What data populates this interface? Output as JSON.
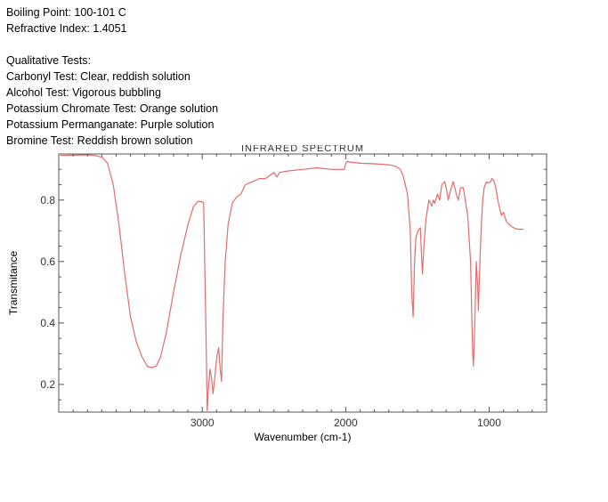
{
  "notes": {
    "boiling_point": "Boiling Point: 100-101 C",
    "refractive_index": "Refractive Index: 1.4051",
    "qualitative_heading": "Qualitative Tests:",
    "carbonyl": "Carbonyl Test: Clear, reddish solution",
    "alcohol": "Alcohol Test: Vigorous bubbling",
    "chromate": "Potassium Chromate Test: Orange solution",
    "permanganate": "Potassium Permanganate: Purple solution",
    "bromine": "Bromine Test: Reddish brown solution"
  },
  "chart_data": {
    "type": "line",
    "title": "INFRARED SPECTRUM",
    "xlabel": "Wavenumber (cm-1)",
    "ylabel": "Transmitance",
    "xlim": [
      4000,
      600
    ],
    "ylim": [
      0.11,
      0.95
    ],
    "x_reversed": true,
    "x_ticks": [
      3000,
      2000,
      1000
    ],
    "y_ticks": [
      0.2,
      0.4,
      0.6,
      0.8
    ],
    "line_color": "#e86a6a",
    "grid": false,
    "series": [
      {
        "name": "",
        "points": [
          [
            3990,
            0.945
          ],
          [
            3800,
            0.947
          ],
          [
            3750,
            0.945
          ],
          [
            3700,
            0.94
          ],
          [
            3660,
            0.92
          ],
          [
            3620,
            0.85
          ],
          [
            3580,
            0.72
          ],
          [
            3540,
            0.56
          ],
          [
            3500,
            0.42
          ],
          [
            3460,
            0.34
          ],
          [
            3420,
            0.29
          ],
          [
            3380,
            0.258
          ],
          [
            3350,
            0.255
          ],
          [
            3320,
            0.26
          ],
          [
            3290,
            0.29
          ],
          [
            3250,
            0.37
          ],
          [
            3200,
            0.5
          ],
          [
            3150,
            0.62
          ],
          [
            3100,
            0.72
          ],
          [
            3060,
            0.78
          ],
          [
            3030,
            0.795
          ],
          [
            3005,
            0.795
          ],
          [
            2990,
            0.79
          ],
          [
            2975,
            0.4
          ],
          [
            2965,
            0.115
          ],
          [
            2955,
            0.2
          ],
          [
            2945,
            0.25
          ],
          [
            2935,
            0.22
          ],
          [
            2925,
            0.17
          ],
          [
            2915,
            0.21
          ],
          [
            2905,
            0.26
          ],
          [
            2895,
            0.3
          ],
          [
            2885,
            0.32
          ],
          [
            2875,
            0.25
          ],
          [
            2865,
            0.21
          ],
          [
            2855,
            0.42
          ],
          [
            2840,
            0.6
          ],
          [
            2820,
            0.72
          ],
          [
            2790,
            0.79
          ],
          [
            2760,
            0.81
          ],
          [
            2730,
            0.82
          ],
          [
            2700,
            0.85
          ],
          [
            2650,
            0.86
          ],
          [
            2600,
            0.87
          ],
          [
            2560,
            0.87
          ],
          [
            2530,
            0.88
          ],
          [
            2500,
            0.89
          ],
          [
            2480,
            0.875
          ],
          [
            2460,
            0.89
          ],
          [
            2400,
            0.895
          ],
          [
            2300,
            0.9
          ],
          [
            2200,
            0.905
          ],
          [
            2100,
            0.9
          ],
          [
            2030,
            0.9
          ],
          [
            2010,
            0.9
          ],
          [
            2000,
            0.92
          ],
          [
            1990,
            0.925
          ],
          [
            1900,
            0.92
          ],
          [
            1800,
            0.918
          ],
          [
            1700,
            0.915
          ],
          [
            1650,
            0.91
          ],
          [
            1620,
            0.9
          ],
          [
            1600,
            0.88
          ],
          [
            1570,
            0.82
          ],
          [
            1550,
            0.7
          ],
          [
            1540,
            0.5
          ],
          [
            1530,
            0.42
          ],
          [
            1520,
            0.6
          ],
          [
            1510,
            0.68
          ],
          [
            1495,
            0.7
          ],
          [
            1480,
            0.71
          ],
          [
            1470,
            0.6
          ],
          [
            1465,
            0.56
          ],
          [
            1455,
            0.65
          ],
          [
            1440,
            0.74
          ],
          [
            1420,
            0.8
          ],
          [
            1400,
            0.78
          ],
          [
            1390,
            0.8
          ],
          [
            1380,
            0.79
          ],
          [
            1360,
            0.82
          ],
          [
            1345,
            0.8
          ],
          [
            1330,
            0.85
          ],
          [
            1310,
            0.86
          ],
          [
            1300,
            0.84
          ],
          [
            1285,
            0.8
          ],
          [
            1270,
            0.83
          ],
          [
            1250,
            0.86
          ],
          [
            1230,
            0.82
          ],
          [
            1215,
            0.8
          ],
          [
            1200,
            0.84
          ],
          [
            1180,
            0.84
          ],
          [
            1150,
            0.75
          ],
          [
            1130,
            0.6
          ],
          [
            1115,
            0.3
          ],
          [
            1110,
            0.26
          ],
          [
            1100,
            0.4
          ],
          [
            1090,
            0.6
          ],
          [
            1080,
            0.52
          ],
          [
            1075,
            0.44
          ],
          [
            1065,
            0.6
          ],
          [
            1055,
            0.72
          ],
          [
            1045,
            0.8
          ],
          [
            1035,
            0.84
          ],
          [
            1020,
            0.86
          ],
          [
            1010,
            0.855
          ],
          [
            990,
            0.86
          ],
          [
            980,
            0.87
          ],
          [
            965,
            0.86
          ],
          [
            950,
            0.83
          ],
          [
            940,
            0.8
          ],
          [
            930,
            0.78
          ],
          [
            915,
            0.75
          ],
          [
            900,
            0.76
          ],
          [
            880,
            0.73
          ],
          [
            860,
            0.72
          ],
          [
            830,
            0.71
          ],
          [
            800,
            0.705
          ],
          [
            760,
            0.705
          ]
        ]
      }
    ]
  }
}
